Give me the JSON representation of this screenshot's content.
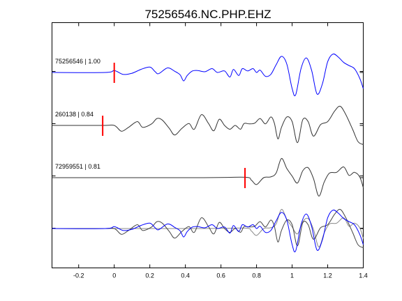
{
  "chart_data": {
    "type": "line",
    "title": "75256546.NC.PHP.EHZ",
    "xlabel": "",
    "ylabel": "",
    "xlim": [
      -0.35,
      1.4
    ],
    "xticks": [
      -0.2,
      0,
      0.2,
      0.4,
      0.6,
      0.8,
      1,
      1.2,
      1.4
    ],
    "xtick_labels": [
      "-0.2",
      "0",
      "0.2",
      "0.4",
      "0.6",
      "0.8",
      "1",
      "1.2",
      "1.4"
    ],
    "grid": false,
    "traces": [
      {
        "label": "75256546 | 1.00",
        "color": "#0000ff",
        "pick_time": 0.0,
        "pick_color": "#ff0000",
        "points": [
          [
            -0.35,
            0.0
          ],
          [
            -0.05,
            0.0
          ],
          [
            0.0,
            0.05
          ],
          [
            0.05,
            -0.05
          ],
          [
            0.1,
            -0.02
          ],
          [
            0.15,
            0.08
          ],
          [
            0.2,
            0.14
          ],
          [
            0.23,
            0.02
          ],
          [
            0.25,
            -0.03
          ],
          [
            0.3,
            0.12
          ],
          [
            0.34,
            0.03
          ],
          [
            0.37,
            -0.06
          ],
          [
            0.39,
            -0.22
          ],
          [
            0.41,
            -0.08
          ],
          [
            0.44,
            0.04
          ],
          [
            0.47,
            0.05
          ],
          [
            0.51,
            0.02
          ],
          [
            0.55,
            0.1
          ],
          [
            0.58,
            0.0
          ],
          [
            0.62,
            0.04
          ],
          [
            0.65,
            -0.12
          ],
          [
            0.67,
            0.08
          ],
          [
            0.7,
            -0.08
          ],
          [
            0.72,
            0.1
          ],
          [
            0.75,
            0.04
          ],
          [
            0.78,
            0.1
          ],
          [
            0.8,
            0.0
          ],
          [
            0.82,
            0.06
          ],
          [
            0.85,
            -0.1
          ],
          [
            0.88,
            -0.05
          ],
          [
            0.91,
            0.2
          ],
          [
            0.94,
            0.42
          ],
          [
            0.97,
            0.22
          ],
          [
            1.0,
            -0.42
          ],
          [
            1.02,
            -0.58
          ],
          [
            1.05,
            0.1
          ],
          [
            1.08,
            0.38
          ],
          [
            1.11,
            0.05
          ],
          [
            1.14,
            -0.56
          ],
          [
            1.17,
            -0.3
          ],
          [
            1.2,
            0.28
          ],
          [
            1.23,
            0.48
          ],
          [
            1.26,
            0.4
          ],
          [
            1.29,
            0.26
          ],
          [
            1.32,
            0.18
          ],
          [
            1.35,
            0.1
          ],
          [
            1.38,
            -0.15
          ],
          [
            1.4,
            -0.42
          ]
        ]
      },
      {
        "label": "260138 | 0.84",
        "color": "#333333",
        "pick_time": -0.065,
        "pick_color": "#ff0000",
        "points": [
          [
            -0.35,
            0.0
          ],
          [
            -0.065,
            0.0
          ],
          [
            0.0,
            0.0
          ],
          [
            0.04,
            -0.15
          ],
          [
            0.08,
            -0.05
          ],
          [
            0.13,
            0.1
          ],
          [
            0.16,
            -0.05
          ],
          [
            0.21,
            0.04
          ],
          [
            0.24,
            0.18
          ],
          [
            0.27,
            0.14
          ],
          [
            0.31,
            -0.08
          ],
          [
            0.34,
            -0.25
          ],
          [
            0.38,
            -0.08
          ],
          [
            0.42,
            0.05
          ],
          [
            0.45,
            -0.1
          ],
          [
            0.49,
            0.28
          ],
          [
            0.53,
            0.05
          ],
          [
            0.56,
            -0.14
          ],
          [
            0.59,
            0.16
          ],
          [
            0.62,
            0.0
          ],
          [
            0.65,
            -0.1
          ],
          [
            0.68,
            0.0
          ],
          [
            0.71,
            -0.1
          ],
          [
            0.73,
            0.05
          ],
          [
            0.76,
            0.04
          ],
          [
            0.79,
            0.06
          ],
          [
            0.82,
            0.18
          ],
          [
            0.85,
            0.04
          ],
          [
            0.88,
            0.22
          ],
          [
            0.9,
            0.06
          ],
          [
            0.92,
            -0.35
          ],
          [
            0.94,
            -0.05
          ],
          [
            0.97,
            0.22
          ],
          [
            1.0,
            0.1
          ],
          [
            1.03,
            -0.45
          ],
          [
            1.06,
            0.15
          ],
          [
            1.09,
            0.1
          ],
          [
            1.12,
            -0.28
          ],
          [
            1.16,
            0.02
          ],
          [
            1.2,
            0.1
          ],
          [
            1.24,
            0.38
          ],
          [
            1.27,
            0.5
          ],
          [
            1.3,
            0.3
          ],
          [
            1.34,
            -0.1
          ],
          [
            1.37,
            -0.42
          ],
          [
            1.4,
            -0.5
          ]
        ]
      },
      {
        "label": "72959551 | 0.81",
        "color": "#333333",
        "pick_time": 0.735,
        "pick_color": "#ff0000",
        "points": [
          [
            -0.35,
            0.0
          ],
          [
            0.5,
            0.0
          ],
          [
            0.735,
            0.01
          ],
          [
            0.77,
            -0.06
          ],
          [
            0.8,
            -0.18
          ],
          [
            0.84,
            0.0
          ],
          [
            0.88,
            0.02
          ],
          [
            0.91,
            0.12
          ],
          [
            0.94,
            0.5
          ],
          [
            0.97,
            0.24
          ],
          [
            1.0,
            0.04
          ],
          [
            1.03,
            -0.14
          ],
          [
            1.06,
            0.18
          ],
          [
            1.09,
            0.26
          ],
          [
            1.12,
            -0.02
          ],
          [
            1.15,
            -0.48
          ],
          [
            1.18,
            -0.12
          ],
          [
            1.21,
            0.12
          ],
          [
            1.25,
            0.14
          ],
          [
            1.29,
            0.28
          ],
          [
            1.32,
            0.06
          ],
          [
            1.35,
            0.14
          ],
          [
            1.38,
            0.02
          ],
          [
            1.4,
            -0.26
          ]
        ]
      }
    ],
    "overlay": {
      "colors": [
        "#0000ff",
        "#444444",
        "#888888"
      ]
    }
  }
}
